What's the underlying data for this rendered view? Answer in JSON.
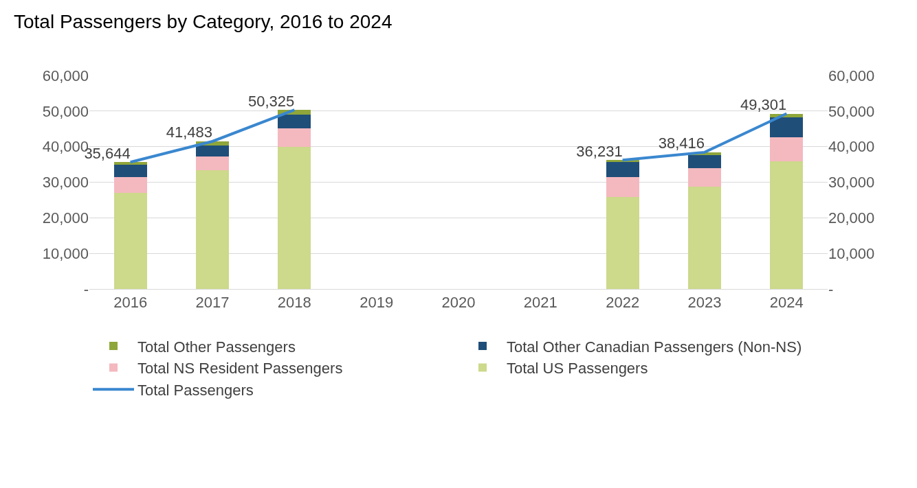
{
  "chart_data": {
    "type": "bar",
    "title": "Total Passengers by Category, 2016 to 2024",
    "stacked": true,
    "categories": [
      "2016",
      "2017",
      "2018",
      "2019",
      "2020",
      "2021",
      "2022",
      "2023",
      "2024"
    ],
    "series": [
      {
        "name": "Total US Passengers",
        "color": "#cdd98b",
        "values": [
          27100,
          33300,
          40000,
          null,
          null,
          null,
          25800,
          28700,
          35800
        ]
      },
      {
        "name": "Total NS Resident Passengers",
        "color": "#f4b8bf",
        "values": [
          4300,
          4000,
          5100,
          null,
          null,
          null,
          5600,
          5200,
          6900
        ]
      },
      {
        "name": "Total Other Canadian Passengers (Non-NS)",
        "color": "#1f4e79",
        "values": [
          3500,
          3000,
          4000,
          null,
          null,
          null,
          4300,
          3800,
          5600
        ]
      },
      {
        "name": "Total Other Passengers",
        "color": "#8fa63a",
        "values": [
          700,
          1200,
          1200,
          null,
          null,
          null,
          500,
          700,
          900
        ]
      },
      {
        "name": "Total Passengers",
        "type": "line",
        "color": "#3a87cf",
        "marker": "none",
        "line_style": "solid",
        "values": [
          35644,
          41483,
          50325,
          null,
          null,
          null,
          36231,
          38416,
          49301
        ],
        "value_labels": [
          "35,644",
          "41,483",
          "50,325",
          null,
          null,
          null,
          "36,231",
          "38,416",
          "49,301"
        ]
      }
    ],
    "ylim": [
      0,
      60000
    ],
    "yticks": [
      {
        "value": 0,
        "label": "-"
      },
      {
        "value": 10000,
        "label": "10,000"
      },
      {
        "value": 20000,
        "label": "20,000"
      },
      {
        "value": 30000,
        "label": "30,000"
      },
      {
        "value": 40000,
        "label": "40,000"
      },
      {
        "value": 50000,
        "label": "50,000"
      },
      {
        "value": 60000,
        "label": "60,000"
      }
    ],
    "y2lim": [
      0,
      60000
    ],
    "y2ticks": [
      {
        "value": 0,
        "label": "-"
      },
      {
        "value": 10000,
        "label": "10,000"
      },
      {
        "value": 20000,
        "label": "20,000"
      },
      {
        "value": 30000,
        "label": "30,000"
      },
      {
        "value": 40000,
        "label": "40,000"
      },
      {
        "value": 50000,
        "label": "50,000"
      },
      {
        "value": 60000,
        "label": "60,000"
      }
    ],
    "grid": "y",
    "legend": "bottom"
  }
}
